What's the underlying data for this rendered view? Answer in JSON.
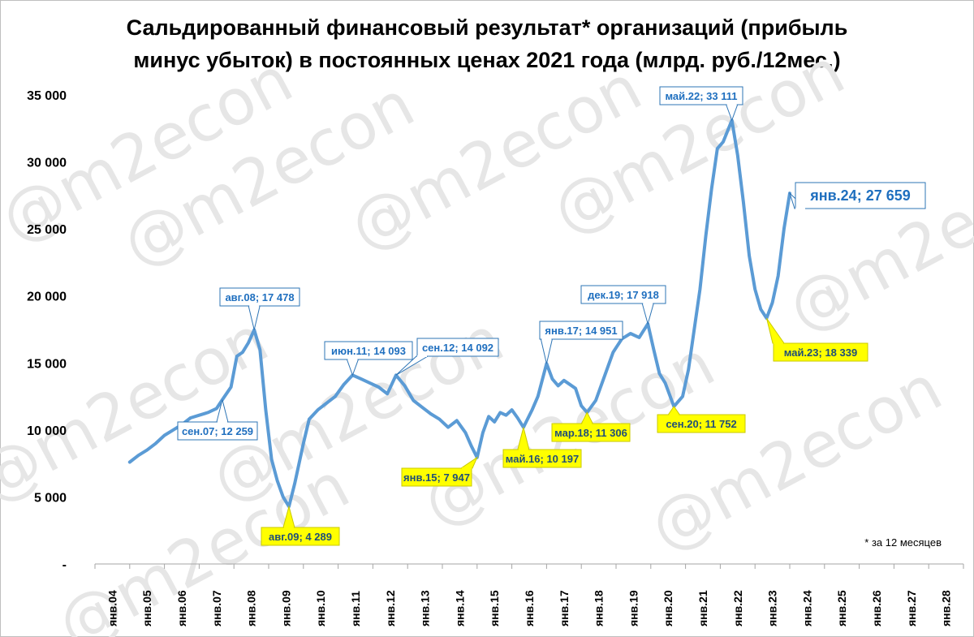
{
  "title_line1": "Сальдированный финансовый результат* организаций (прибыль",
  "title_line2": "минус убыток) в постоянных ценах 2021 года (млрд. руб./12мес.)",
  "footnote": "* за 12 месяцев",
  "watermark": "@m2econ",
  "colors": {
    "line": "#5b9bd5",
    "peak_text": "#1f6fbf",
    "peak_border": "#2e75b6",
    "trough_fill": "#ffff00",
    "trough_text": "#1f4e79",
    "axis": "#a6a6a6",
    "watermark": "#e6e6e6"
  },
  "chart_data": {
    "type": "line",
    "xlabel": "",
    "ylabel": "",
    "ylim": [
      0,
      35000
    ],
    "y_ticks": [
      0,
      5000,
      10000,
      15000,
      20000,
      25000,
      30000,
      35000
    ],
    "y_tick_labels": [
      "-",
      "5 000",
      "10 000",
      "15 000",
      "20 000",
      "25 000",
      "30 000",
      "35 000"
    ],
    "x_range": [
      "2004-01",
      "2029-01"
    ],
    "x_tick_labels": [
      "янв.04",
      "янв.05",
      "янв.06",
      "янв.07",
      "янв.08",
      "янв.09",
      "янв.10",
      "янв.11",
      "янв.12",
      "янв.13",
      "янв.14",
      "янв.15",
      "янв.16",
      "янв.17",
      "янв.18",
      "янв.19",
      "янв.20",
      "янв.21",
      "янв.22",
      "янв.23",
      "янв.24",
      "янв.25",
      "янв.26",
      "янв.27",
      "янв.28"
    ],
    "grid": false,
    "legend": "none",
    "series": [
      {
        "points": [
          [
            "2005-01",
            7600
          ],
          [
            "2005-04",
            8100
          ],
          [
            "2005-07",
            8500
          ],
          [
            "2005-10",
            9000
          ],
          [
            "2006-01",
            9600
          ],
          [
            "2006-04",
            10000
          ],
          [
            "2006-07",
            10400
          ],
          [
            "2006-10",
            10900
          ],
          [
            "2007-01",
            11100
          ],
          [
            "2007-04",
            11300
          ],
          [
            "2007-07",
            11600
          ],
          [
            "2007-09",
            12259
          ],
          [
            "2007-12",
            13200
          ],
          [
            "2008-02",
            15500
          ],
          [
            "2008-04",
            15800
          ],
          [
            "2008-06",
            16500
          ],
          [
            "2008-08",
            17478
          ],
          [
            "2008-10",
            16000
          ],
          [
            "2008-12",
            11500
          ],
          [
            "2009-02",
            7800
          ],
          [
            "2009-04",
            6200
          ],
          [
            "2009-06",
            5000
          ],
          [
            "2009-08",
            4289
          ],
          [
            "2009-10",
            6000
          ],
          [
            "2010-01",
            9000
          ],
          [
            "2010-03",
            10800
          ],
          [
            "2010-06",
            11500
          ],
          [
            "2010-09",
            12000
          ],
          [
            "2010-12",
            12500
          ],
          [
            "2011-03",
            13400
          ],
          [
            "2011-06",
            14093
          ],
          [
            "2011-09",
            13800
          ],
          [
            "2011-12",
            13500
          ],
          [
            "2012-03",
            13200
          ],
          [
            "2012-06",
            12700
          ],
          [
            "2012-09",
            14092
          ],
          [
            "2012-12",
            13300
          ],
          [
            "2013-03",
            12200
          ],
          [
            "2013-06",
            11700
          ],
          [
            "2013-09",
            11200
          ],
          [
            "2013-12",
            10800
          ],
          [
            "2014-03",
            10200
          ],
          [
            "2014-06",
            10700
          ],
          [
            "2014-09",
            9800
          ],
          [
            "2014-11",
            8800
          ],
          [
            "2015-01",
            7947
          ],
          [
            "2015-03",
            9800
          ],
          [
            "2015-05",
            11000
          ],
          [
            "2015-07",
            10600
          ],
          [
            "2015-09",
            11300
          ],
          [
            "2015-11",
            11100
          ],
          [
            "2016-01",
            11500
          ],
          [
            "2016-03",
            10900
          ],
          [
            "2016-05",
            10197
          ],
          [
            "2016-08",
            11500
          ],
          [
            "2016-10",
            12500
          ],
          [
            "2017-01",
            14951
          ],
          [
            "2017-03",
            13800
          ],
          [
            "2017-05",
            13300
          ],
          [
            "2017-07",
            13700
          ],
          [
            "2017-09",
            13400
          ],
          [
            "2017-11",
            13100
          ],
          [
            "2018-01",
            11800
          ],
          [
            "2018-03",
            11306
          ],
          [
            "2018-06",
            12200
          ],
          [
            "2018-09",
            14000
          ],
          [
            "2018-12",
            15800
          ],
          [
            "2019-03",
            16800
          ],
          [
            "2019-06",
            17200
          ],
          [
            "2019-09",
            16900
          ],
          [
            "2019-12",
            17918
          ],
          [
            "2020-02",
            16000
          ],
          [
            "2020-04",
            14200
          ],
          [
            "2020-06",
            13500
          ],
          [
            "2020-09",
            11752
          ],
          [
            "2020-12",
            12500
          ],
          [
            "2021-02",
            14500
          ],
          [
            "2021-04",
            17500
          ],
          [
            "2021-06",
            20500
          ],
          [
            "2021-08",
            24500
          ],
          [
            "2021-10",
            28000
          ],
          [
            "2021-12",
            31000
          ],
          [
            "2022-02",
            31500
          ],
          [
            "2022-05",
            33111
          ],
          [
            "2022-07",
            30500
          ],
          [
            "2022-09",
            27000
          ],
          [
            "2022-11",
            23000
          ],
          [
            "2023-01",
            20500
          ],
          [
            "2023-03",
            19000
          ],
          [
            "2023-05",
            18339
          ],
          [
            "2023-07",
            19500
          ],
          [
            "2023-09",
            21500
          ],
          [
            "2023-11",
            25000
          ],
          [
            "2024-01",
            27659
          ]
        ]
      }
    ],
    "annotations": [
      {
        "label": "авг.08;  17 478",
        "x": "2008-08",
        "y": 17478,
        "kind": "peak"
      },
      {
        "label": "сен.07;  12 259",
        "x": "2007-09",
        "y": 12259,
        "kind": "peak"
      },
      {
        "label": "авг.09;  4 289",
        "x": "2009-08",
        "y": 4289,
        "kind": "trough"
      },
      {
        "label": "июн.11;  14 093",
        "x": "2011-06",
        "y": 14093,
        "kind": "peak"
      },
      {
        "label": "сен.12;  14 092",
        "x": "2012-09",
        "y": 14092,
        "kind": "peak"
      },
      {
        "label": "янв.15;  7 947",
        "x": "2015-01",
        "y": 7947,
        "kind": "trough"
      },
      {
        "label": "май.16;  10 197",
        "x": "2016-05",
        "y": 10197,
        "kind": "trough"
      },
      {
        "label": "янв.17;  14 951",
        "x": "2017-01",
        "y": 14951,
        "kind": "peak"
      },
      {
        "label": "мар.18;  11 306",
        "x": "2018-03",
        "y": 11306,
        "kind": "trough"
      },
      {
        "label": "дек.19;  17 918",
        "x": "2019-12",
        "y": 17918,
        "kind": "peak"
      },
      {
        "label": "сен.20;  11 752",
        "x": "2020-09",
        "y": 11752,
        "kind": "trough"
      },
      {
        "label": "май.22;  33 111",
        "x": "2022-05",
        "y": 33111,
        "kind": "peak"
      },
      {
        "label": "май.23;  18 339",
        "x": "2023-05",
        "y": 18339,
        "kind": "trough"
      },
      {
        "label": "янв.24;  27 659",
        "x": "2024-01",
        "y": 27659,
        "kind": "latest"
      }
    ]
  }
}
